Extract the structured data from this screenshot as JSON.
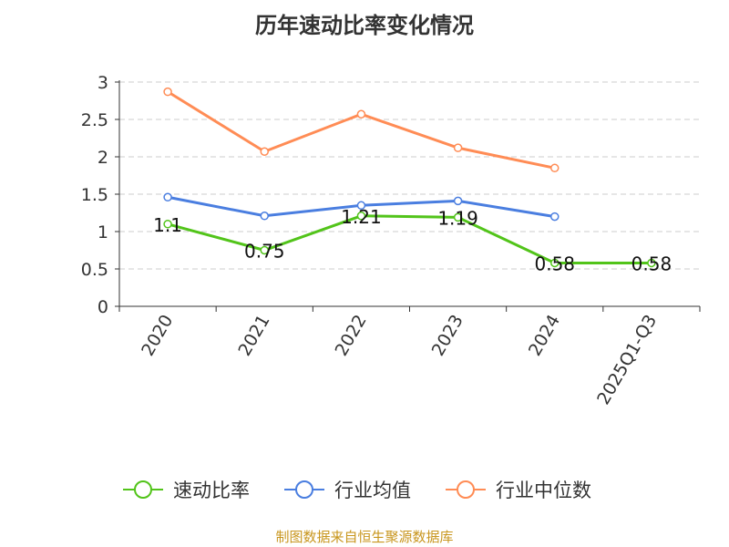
{
  "chart_data": {
    "type": "line",
    "title": "历年速动比率变化情况",
    "categories": [
      "2020",
      "2021",
      "2022",
      "2023",
      "2024",
      "2025Q1-Q3"
    ],
    "ylim": [
      0,
      3
    ],
    "yticks": [
      "0",
      "0.5",
      "1",
      "1.5",
      "2",
      "2.5",
      "3"
    ],
    "grid": true,
    "legend_position": "bottom",
    "series": [
      {
        "name": "速动比率",
        "color": "#52c41a",
        "values": [
          1.1,
          0.75,
          1.21,
          1.19,
          0.58,
          0.58
        ],
        "labels": [
          "1.1",
          "0.75",
          "1.21",
          "1.19",
          "0.58",
          "0.58"
        ]
      },
      {
        "name": "行业均值",
        "color": "#4a7ee0",
        "values": [
          1.46,
          1.21,
          1.35,
          1.41,
          1.2,
          null
        ]
      },
      {
        "name": "行业中位数",
        "color": "#ff8c55",
        "values": [
          2.87,
          2.07,
          2.57,
          2.12,
          1.85,
          null
        ]
      }
    ]
  },
  "source": "制图数据来自恒生聚源数据库"
}
